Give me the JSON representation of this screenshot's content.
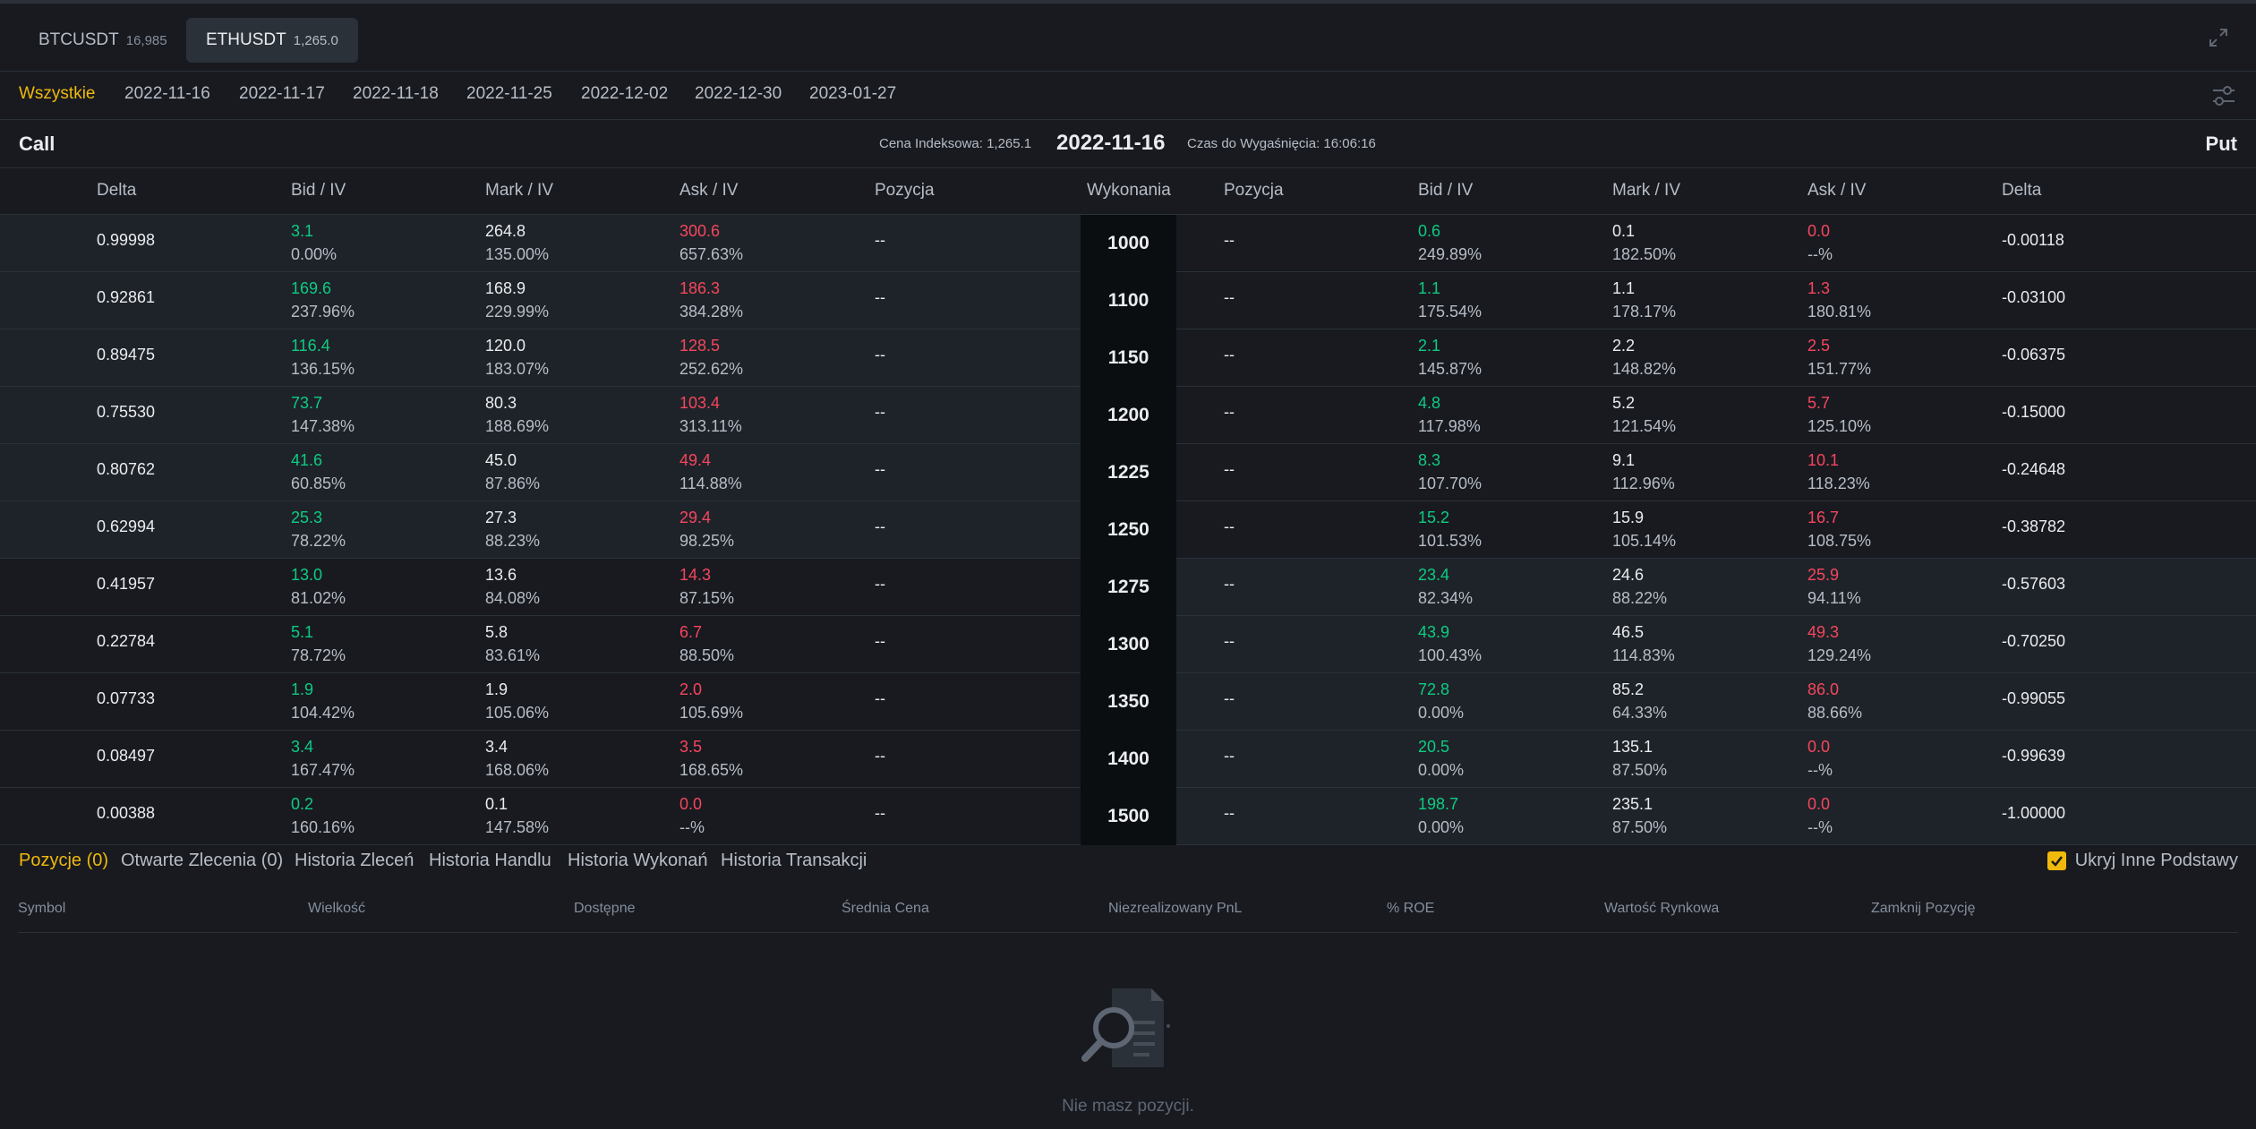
{
  "symbols": [
    {
      "name": "BTCUSDT",
      "price": "16,985"
    },
    {
      "name": "ETHUSDT",
      "price": "1,265.0"
    }
  ],
  "dates": [
    "Wszystkie",
    "2022-11-16",
    "2022-11-17",
    "2022-11-18",
    "2022-11-25",
    "2022-12-02",
    "2022-12-30",
    "2023-01-27"
  ],
  "header": {
    "call_label": "Call",
    "put_label": "Put",
    "index_price": "Cena Indeksowa: 1,265.1",
    "expiry_date": "2022-11-16",
    "time_to_expiry": "Czas do Wygaśnięcia: 16:06:16"
  },
  "columns": {
    "delta": "Delta",
    "bid": "Bid / IV",
    "mark": "Mark / IV",
    "ask": "Ask / IV",
    "position": "Pozycja",
    "strike": "Wykonania"
  },
  "rows": [
    {
      "strike": "1000",
      "call": {
        "delta": "0.99998",
        "bid": "3.1",
        "bid_iv": "0.00%",
        "mark": "264.8",
        "mark_iv": "135.00%",
        "ask": "300.6",
        "ask_iv": "657.63%",
        "pos": "--"
      },
      "put": {
        "pos": "--",
        "bid": "0.6",
        "bid_iv": "249.89%",
        "mark": "0.1",
        "mark_iv": "182.50%",
        "ask": "0.0",
        "ask_iv": "--%",
        "delta": "-0.00118"
      }
    },
    {
      "strike": "1100",
      "call": {
        "delta": "0.92861",
        "bid": "169.6",
        "bid_iv": "237.96%",
        "mark": "168.9",
        "mark_iv": "229.99%",
        "ask": "186.3",
        "ask_iv": "384.28%",
        "pos": "--"
      },
      "put": {
        "pos": "--",
        "bid": "1.1",
        "bid_iv": "175.54%",
        "mark": "1.1",
        "mark_iv": "178.17%",
        "ask": "1.3",
        "ask_iv": "180.81%",
        "delta": "-0.03100"
      }
    },
    {
      "strike": "1150",
      "call": {
        "delta": "0.89475",
        "bid": "116.4",
        "bid_iv": "136.15%",
        "mark": "120.0",
        "mark_iv": "183.07%",
        "ask": "128.5",
        "ask_iv": "252.62%",
        "pos": "--"
      },
      "put": {
        "pos": "--",
        "bid": "2.1",
        "bid_iv": "145.87%",
        "mark": "2.2",
        "mark_iv": "148.82%",
        "ask": "2.5",
        "ask_iv": "151.77%",
        "delta": "-0.06375"
      }
    },
    {
      "strike": "1200",
      "call": {
        "delta": "0.75530",
        "bid": "73.7",
        "bid_iv": "147.38%",
        "mark": "80.3",
        "mark_iv": "188.69%",
        "ask": "103.4",
        "ask_iv": "313.11%",
        "pos": "--"
      },
      "put": {
        "pos": "--",
        "bid": "4.8",
        "bid_iv": "117.98%",
        "mark": "5.2",
        "mark_iv": "121.54%",
        "ask": "5.7",
        "ask_iv": "125.10%",
        "delta": "-0.15000"
      }
    },
    {
      "strike": "1225",
      "call": {
        "delta": "0.80762",
        "bid": "41.6",
        "bid_iv": "60.85%",
        "mark": "45.0",
        "mark_iv": "87.86%",
        "ask": "49.4",
        "ask_iv": "114.88%",
        "pos": "--"
      },
      "put": {
        "pos": "--",
        "bid": "8.3",
        "bid_iv": "107.70%",
        "mark": "9.1",
        "mark_iv": "112.96%",
        "ask": "10.1",
        "ask_iv": "118.23%",
        "delta": "-0.24648"
      }
    },
    {
      "strike": "1250",
      "call": {
        "delta": "0.62994",
        "bid": "25.3",
        "bid_iv": "78.22%",
        "mark": "27.3",
        "mark_iv": "88.23%",
        "ask": "29.4",
        "ask_iv": "98.25%",
        "pos": "--"
      },
      "put": {
        "pos": "--",
        "bid": "15.2",
        "bid_iv": "101.53%",
        "mark": "15.9",
        "mark_iv": "105.14%",
        "ask": "16.7",
        "ask_iv": "108.75%",
        "delta": "-0.38782"
      }
    },
    {
      "strike": "1275",
      "call": {
        "delta": "0.41957",
        "bid": "13.0",
        "bid_iv": "81.02%",
        "mark": "13.6",
        "mark_iv": "84.08%",
        "ask": "14.3",
        "ask_iv": "87.15%",
        "pos": "--"
      },
      "put": {
        "pos": "--",
        "bid": "23.4",
        "bid_iv": "82.34%",
        "mark": "24.6",
        "mark_iv": "88.22%",
        "ask": "25.9",
        "ask_iv": "94.11%",
        "delta": "-0.57603"
      }
    },
    {
      "strike": "1300",
      "call": {
        "delta": "0.22784",
        "bid": "5.1",
        "bid_iv": "78.72%",
        "mark": "5.8",
        "mark_iv": "83.61%",
        "ask": "6.7",
        "ask_iv": "88.50%",
        "pos": "--"
      },
      "put": {
        "pos": "--",
        "bid": "43.9",
        "bid_iv": "100.43%",
        "mark": "46.5",
        "mark_iv": "114.83%",
        "ask": "49.3",
        "ask_iv": "129.24%",
        "delta": "-0.70250"
      }
    },
    {
      "strike": "1350",
      "call": {
        "delta": "0.07733",
        "bid": "1.9",
        "bid_iv": "104.42%",
        "mark": "1.9",
        "mark_iv": "105.06%",
        "ask": "2.0",
        "ask_iv": "105.69%",
        "pos": "--"
      },
      "put": {
        "pos": "--",
        "bid": "72.8",
        "bid_iv": "0.00%",
        "mark": "85.2",
        "mark_iv": "64.33%",
        "ask": "86.0",
        "ask_iv": "88.66%",
        "delta": "-0.99055"
      }
    },
    {
      "strike": "1400",
      "call": {
        "delta": "0.08497",
        "bid": "3.4",
        "bid_iv": "167.47%",
        "mark": "3.4",
        "mark_iv": "168.06%",
        "ask": "3.5",
        "ask_iv": "168.65%",
        "pos": "--"
      },
      "put": {
        "pos": "--",
        "bid": "20.5",
        "bid_iv": "0.00%",
        "mark": "135.1",
        "mark_iv": "87.50%",
        "ask": "0.0",
        "ask_iv": "--%",
        "delta": "-0.99639"
      }
    },
    {
      "strike": "1500",
      "call": {
        "delta": "0.00388",
        "bid": "0.2",
        "bid_iv": "160.16%",
        "mark": "0.1",
        "mark_iv": "147.58%",
        "ask": "0.0",
        "ask_iv": "--%",
        "pos": "--"
      },
      "put": {
        "pos": "--",
        "bid": "198.7",
        "bid_iv": "0.00%",
        "mark": "235.1",
        "mark_iv": "87.50%",
        "ask": "0.0",
        "ask_iv": "--%",
        "delta": "-1.00000"
      }
    }
  ],
  "bottom": {
    "tabs": [
      "Pozycje (0)",
      "Otwarte Zlecenia (0)",
      "Historia Zleceń",
      "Historia Handlu",
      "Historia Wykonań",
      "Historia Transakcji"
    ],
    "hide_other": "Ukryj Inne Podstawy",
    "hide_other_checked": true,
    "columns": [
      "Symbol",
      "Wielkość",
      "Dostępne",
      "Średnia Cena",
      "Niezrealizowany PnL",
      "% ROE",
      "Wartość Rynkowa",
      "Zamknij Pozycję"
    ],
    "empty_text": "Nie masz pozycji."
  },
  "colors": {
    "accent": "#f0b90b",
    "bid": "#0ecb81",
    "ask": "#f6465d",
    "background": "#181a20",
    "itm_background": "#1e2329"
  },
  "icons": {
    "expand": "expand-icon",
    "settings": "sliders-icon",
    "empty": "document-search-icon",
    "checkbox": "checkmark-icon"
  }
}
